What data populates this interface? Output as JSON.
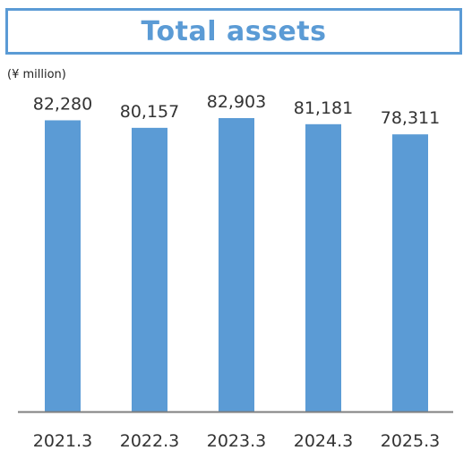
{
  "chart_data": {
    "type": "bar",
    "title": "Total assets",
    "unit": "(¥ million)",
    "categories": [
      "2021.3",
      "2022.3",
      "2023.3",
      "2024.3",
      "2025.3"
    ],
    "values": [
      82280,
      80157,
      82903,
      81181,
      78311
    ],
    "data_labels": [
      "82,280",
      "80,157",
      "82,903",
      "81,181",
      "78,311"
    ],
    "xlabel": "",
    "ylabel": "",
    "ylim": [
      0,
      82903
    ],
    "grid": false,
    "bar_color": "#5b9bd5",
    "axis_color": "#7f7f7f"
  }
}
